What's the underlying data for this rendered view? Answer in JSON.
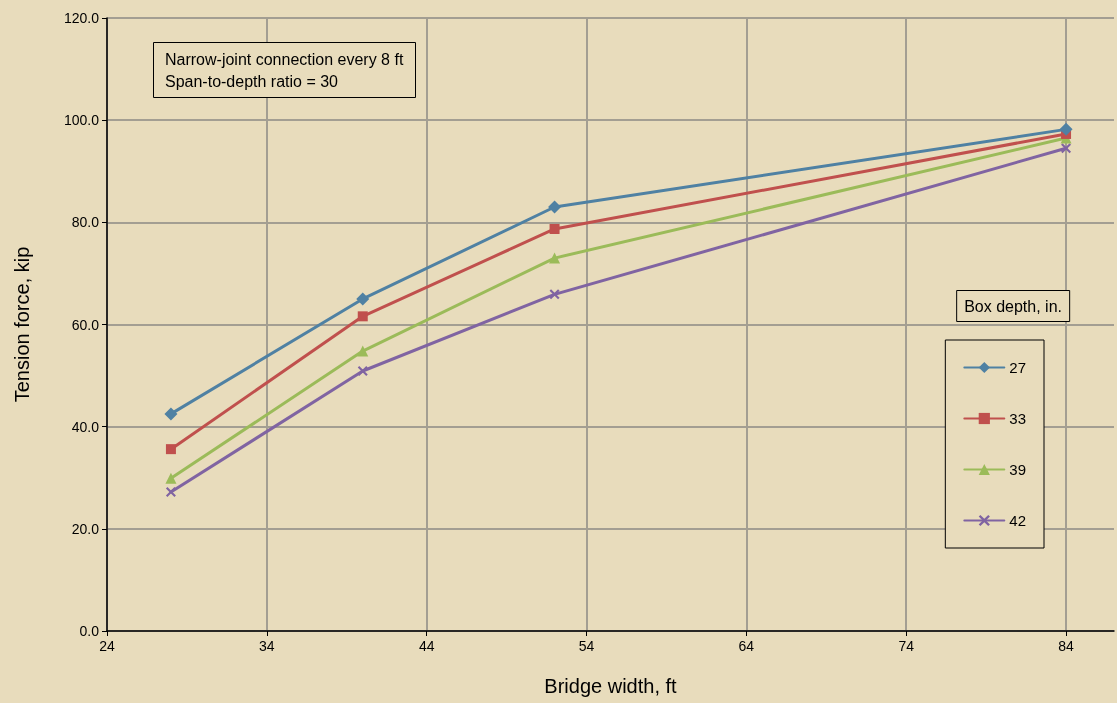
{
  "chart_data": {
    "type": "line",
    "xlabel": "Bridge width, ft",
    "ylabel": "Tension force, kip",
    "legend_title": "Box depth, in.",
    "annotations": [
      "Narrow-joint connection every 8 ft",
      "Span-to-depth ratio = 30"
    ],
    "x": [
      28,
      40,
      52,
      84
    ],
    "series": [
      {
        "name": "27",
        "color": "#4f81a3",
        "marker": "diamond",
        "values": [
          42.5,
          65.0,
          83.0,
          98.2
        ]
      },
      {
        "name": "33",
        "color": "#c0504d",
        "marker": "square",
        "values": [
          35.6,
          61.6,
          78.7,
          97.3
        ]
      },
      {
        "name": "39",
        "color": "#9bbb59",
        "marker": "triangle",
        "values": [
          29.9,
          54.8,
          73.0,
          96.5
        ]
      },
      {
        "name": "42",
        "color": "#8064a2",
        "marker": "cross",
        "values": [
          27.2,
          50.9,
          65.9,
          94.5
        ]
      }
    ],
    "xlim": [
      24,
      87
    ],
    "xticks": [
      24,
      34,
      44,
      54,
      64,
      74,
      84
    ],
    "ylim": [
      0,
      120
    ],
    "yticks": [
      {
        "value": 0,
        "label": "0.0"
      },
      {
        "value": 20,
        "label": "20.0"
      },
      {
        "value": 40,
        "label": "40.0"
      },
      {
        "value": 60,
        "label": "60.0"
      },
      {
        "value": 80,
        "label": "80.0"
      },
      {
        "value": 100,
        "label": "100.0"
      },
      {
        "value": 120,
        "label": "120.0"
      }
    ],
    "grid": true,
    "legend": "right",
    "line_style": "solid"
  }
}
